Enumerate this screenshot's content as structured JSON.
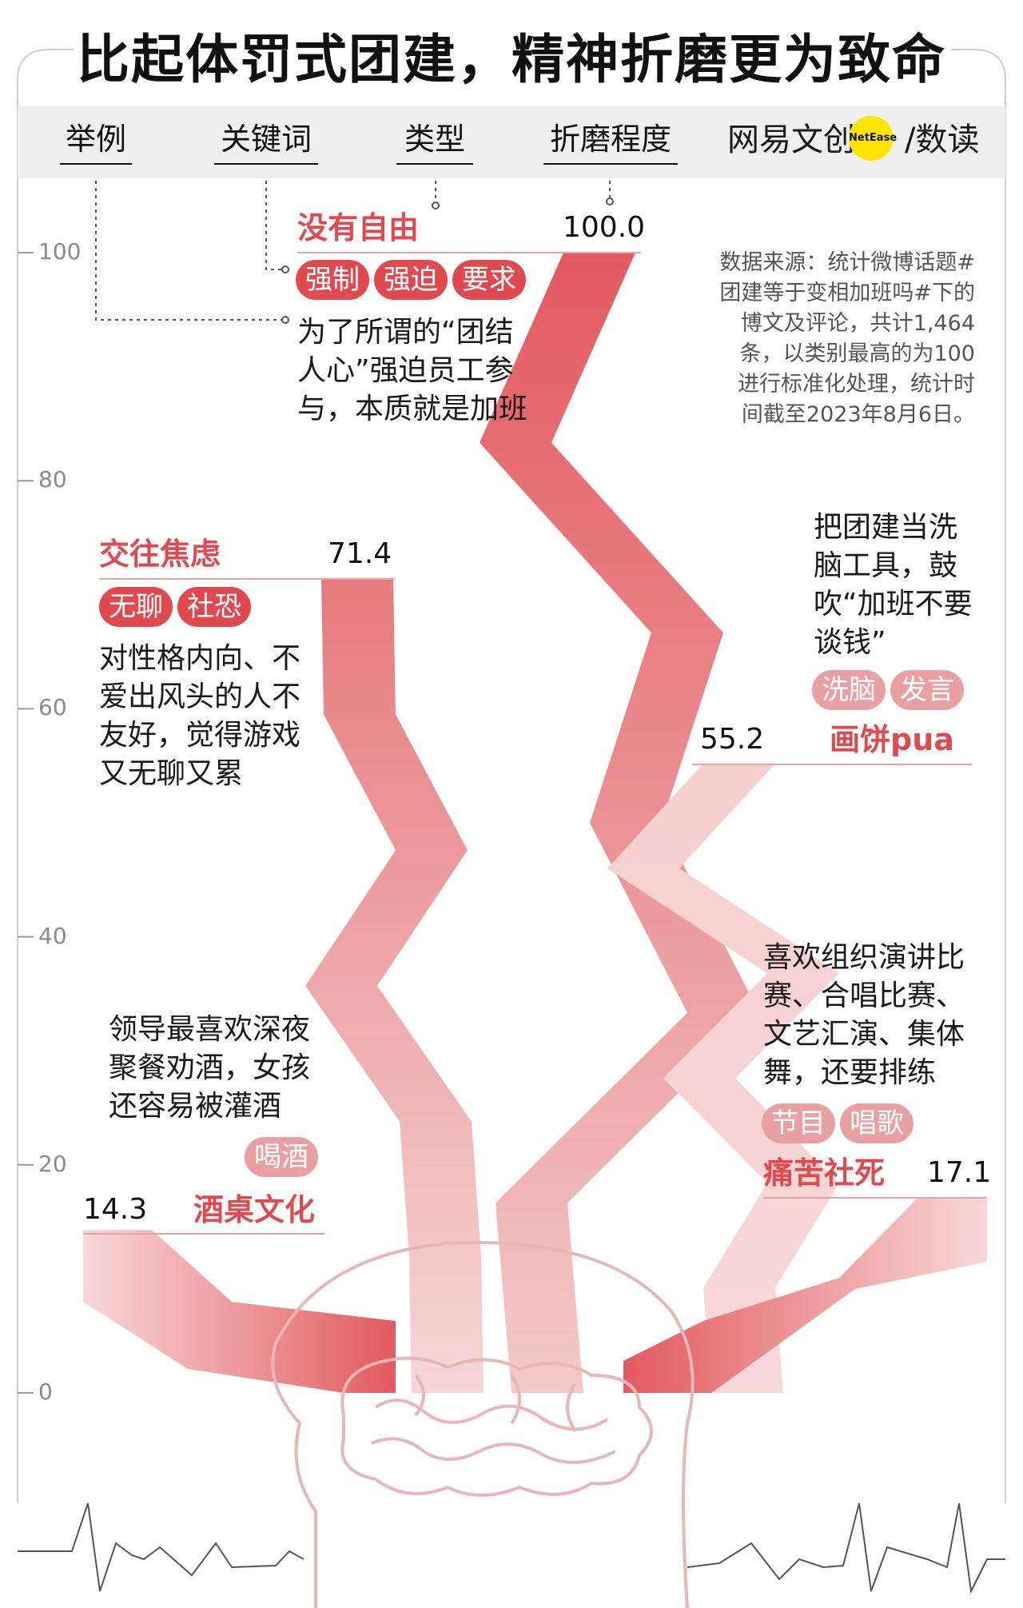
{
  "title": "比起体罚式团建，精神折磨更为致命",
  "header": {
    "col_example": "举例",
    "col_keyword": "关键词",
    "col_type": "类型",
    "col_degree": "折磨程度",
    "brand_left": "网易文创",
    "brand_badge": "NetEase",
    "brand_right": "/数读"
  },
  "source_note": "数据来源：统计微博话题#团建等于变相加班吗#下的博文及评论，共计1,464条，以类别最高的为100进行标准化处理，统计时间截至2023年8月6日。",
  "colors": {
    "accent": "#e2494f",
    "band_high": "#e25a5f",
    "band_low": "#f5d3d2",
    "tag_light": "#e8a0a3"
  },
  "chart_data": {
    "type": "bar",
    "ylim": [
      0,
      100
    ],
    "yticks": [
      "0",
      "20",
      "40",
      "60",
      "80",
      "100"
    ],
    "categories": [
      "酒桌文化",
      "交往焦虑",
      "没有自由",
      "画饼pua",
      "痛苦社死"
    ],
    "values": [
      14.3,
      71.4,
      100.0,
      55.2,
      17.1
    ],
    "value_labels": [
      "14.3",
      "71.4",
      "100.0",
      "55.2",
      "17.1"
    ],
    "keywords": [
      [
        "喝酒"
      ],
      [
        "无聊",
        "社恐"
      ],
      [
        "强制",
        "强迫",
        "要求"
      ],
      [
        "洗脑",
        "发言"
      ],
      [
        "节目",
        "唱歌"
      ]
    ],
    "examples": [
      "领导最喜欢深夜聚餐劝酒，女孩还容易被灌酒",
      "对性格内向、不爱出风头的人不友好，觉得游戏又无聊又累",
      "为了所谓的“团结人心”强迫员工参与，本质就是加班",
      "把团建当洗脑工具，鼓吹“加班不要谈钱”",
      "喜欢组织演讲比赛、合唱比赛、文艺汇演、集体舞，还要排练"
    ]
  }
}
